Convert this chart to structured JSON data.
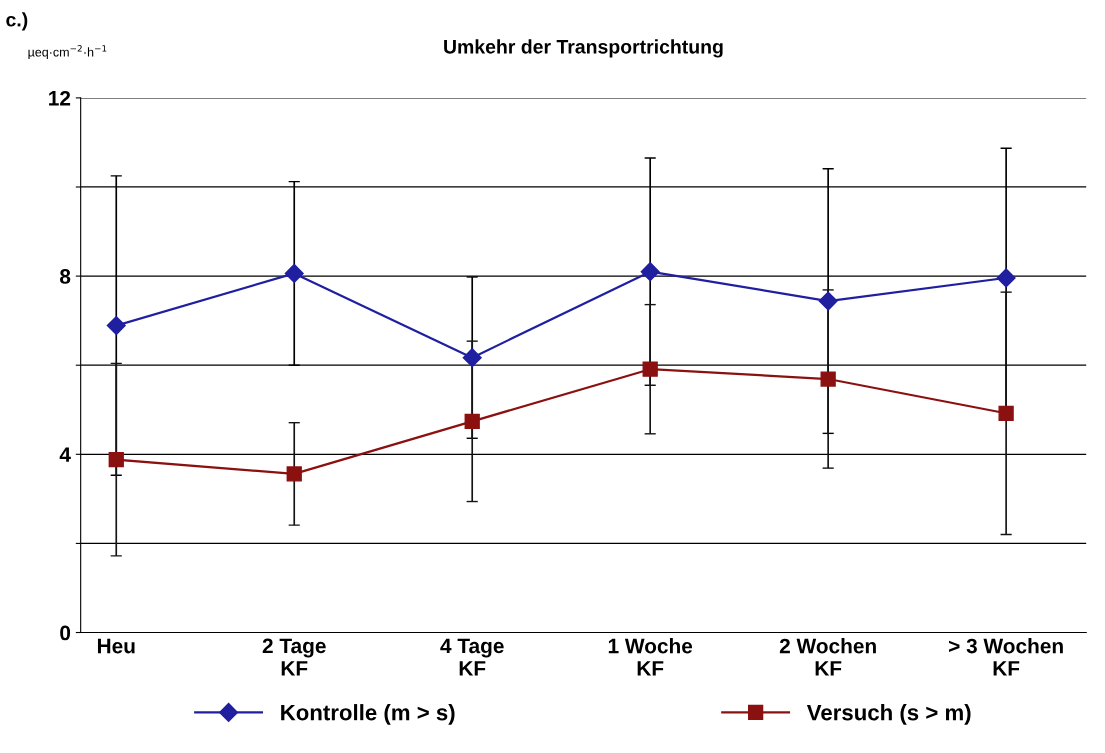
{
  "chart_data": {
    "type": "line",
    "title": "Umkehr der Transportrichtung",
    "ylabel": "µeq·cm$^{−2}$·h$^{−1}$",
    "annotations": [
      "c.)"
    ],
    "categories": [
      "Heu",
      "2 Tage\nKF",
      "4 Tage\nKF",
      "1 Woche\nKF",
      "2 Wochen\nKF",
      "> 3 Wochen\nKF"
    ],
    "series": [
      {
        "name": "Kontrolle (m > s)",
        "color": "#1f1fa0",
        "marker": "diamond",
        "values": [
          6.89,
          8.06,
          6.17,
          8.1,
          7.44,
          7.96
        ],
        "errors": [
          3.36,
          2.06,
          1.81,
          2.55,
          2.97,
          2.91
        ]
      },
      {
        "name": "Versuch (s > m)",
        "color": "#8b1010",
        "marker": "square",
        "values": [
          3.88,
          3.56,
          4.74,
          5.91,
          5.69,
          4.92
        ],
        "errors": [
          2.16,
          1.15,
          1.8,
          1.45,
          2.0,
          2.72
        ]
      }
    ],
    "ylim": [
      0,
      12
    ],
    "yticks": [
      0,
      {
        "value": 2,
        "label": null
      },
      4,
      {
        "value": 6,
        "label": null
      },
      8,
      {
        "value": 10,
        "label": null
      },
      12
    ],
    "grid": "y",
    "legend": "bottom"
  }
}
